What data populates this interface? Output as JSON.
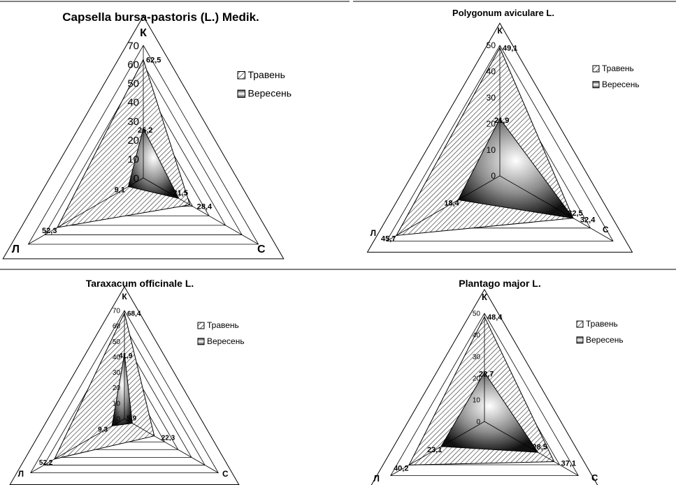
{
  "legend": {
    "may_label": "Травень",
    "september_label": "Вересень"
  },
  "chart_data": [
    {
      "type": "radar",
      "title": "Capsella bursa-pastoris (L.) Medik.",
      "axes": [
        "К",
        "С",
        "Л"
      ],
      "ylim": [
        0,
        70
      ],
      "ticks": [
        0,
        10,
        20,
        30,
        40,
        50,
        60,
        70
      ],
      "series": [
        {
          "name": "Травень",
          "values": [
            62.5,
            28.4,
            52.3
          ],
          "labels": [
            "62,5",
            "28,4",
            "52,3"
          ]
        },
        {
          "name": "Вересень",
          "values": [
            26.2,
            21.5,
            9.1
          ],
          "labels": [
            "26,2",
            "21,5",
            "9,1"
          ]
        }
      ]
    },
    {
      "type": "radar",
      "title": "Polygonum aviculare L.",
      "axes": [
        "К",
        "С",
        "Л"
      ],
      "ylim": [
        0,
        50
      ],
      "ticks": [
        0,
        10,
        20,
        30,
        40,
        50
      ],
      "series": [
        {
          "name": "Травень",
          "values": [
            49.1,
            32.4,
            45.7
          ],
          "labels": [
            "49,1",
            "32,4",
            "45,7"
          ]
        },
        {
          "name": "Вересень",
          "values": [
            21.9,
            32.5,
            18.4
          ],
          "labels": [
            "21,9",
            "32,5",
            "18,4"
          ]
        }
      ]
    },
    {
      "type": "radar",
      "title": "Taraxacum officinale L.",
      "axes": [
        "К",
        "С",
        "Л"
      ],
      "ylim": [
        0,
        70
      ],
      "ticks": [
        0,
        10,
        20,
        30,
        40,
        50,
        60,
        70
      ],
      "series": [
        {
          "name": "Травень",
          "values": [
            68.4,
            22.3,
            52.2
          ],
          "labels": [
            "68,4",
            "22,3",
            "52,2"
          ]
        },
        {
          "name": "Вересень",
          "values": [
            41.9,
            5.9,
            9.3
          ],
          "labels": [
            "41,9",
            "5,9",
            "9,3"
          ]
        }
      ]
    },
    {
      "type": "radar",
      "title": "Plantago major L.",
      "axes": [
        "К",
        "С",
        "Л"
      ],
      "ylim": [
        0,
        50
      ],
      "ticks": [
        0,
        10,
        20,
        30,
        40,
        50
      ],
      "series": [
        {
          "name": "Травень",
          "values": [
            48.4,
            37.1,
            40.2
          ],
          "labels": [
            "48,4",
            "37,1",
            "40,2"
          ]
        },
        {
          "name": "Вересень",
          "values": [
            22.7,
            28.5,
            23.1
          ],
          "labels": [
            "22,7",
            "28,5",
            "23,1"
          ]
        }
      ]
    }
  ]
}
